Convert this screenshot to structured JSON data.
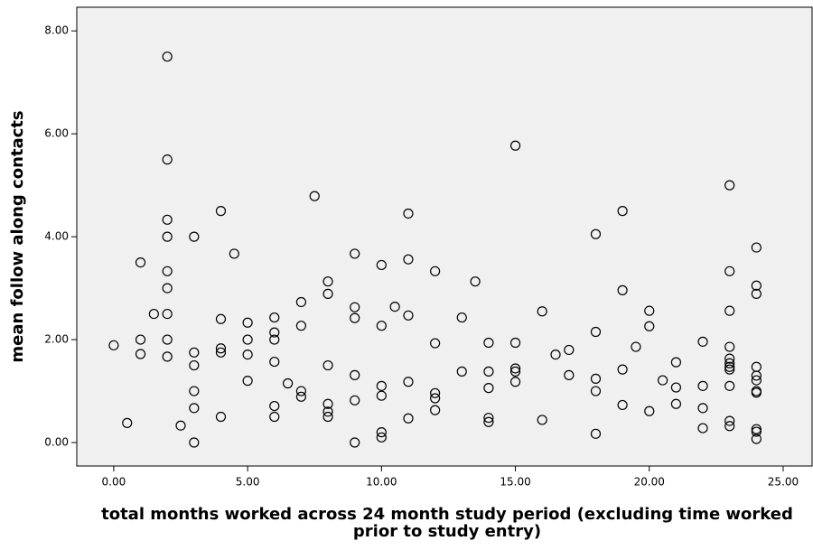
{
  "chart_data": {
    "type": "scatter",
    "x_label": "total months worked across 24 month study period (excluding time worked prior to study entry)",
    "y_label": "mean follow along contacts",
    "color": "#000000",
    "background": "#f0f0f0",
    "xlim": [
      -1.38,
      26.08
    ],
    "ylim": [
      -0.456,
      8.46
    ],
    "xticks": [
      {
        "value": 0,
        "label": "0.00"
      },
      {
        "value": 5,
        "label": "5.00"
      },
      {
        "value": 10,
        "label": "10.00"
      },
      {
        "value": 15,
        "label": "15.00"
      },
      {
        "value": 20,
        "label": "20.00"
      },
      {
        "value": 25,
        "label": "25.00"
      }
    ],
    "yticks": [
      {
        "value": 0,
        "label": "0.00"
      },
      {
        "value": 2,
        "label": "2.00"
      },
      {
        "value": 4,
        "label": "4.00"
      },
      {
        "value": 6,
        "label": "6.00"
      },
      {
        "value": 8,
        "label": "8.00"
      }
    ],
    "x": [
      0,
      0.5,
      1,
      1,
      1,
      1.5,
      2,
      2,
      2,
      2,
      2,
      2,
      2,
      2,
      2,
      2.5,
      3,
      3,
      3,
      3,
      3,
      3,
      4,
      4,
      4,
      4,
      4.5,
      4,
      5,
      5,
      5,
      5,
      6,
      6,
      6,
      6,
      6,
      6,
      6.5,
      7,
      7,
      7,
      7,
      7.5,
      8,
      8,
      8,
      8,
      8,
      8,
      9,
      9,
      9,
      9,
      9,
      9,
      10,
      10,
      10,
      10,
      10,
      10,
      10.5,
      11,
      11,
      11,
      11,
      11,
      12,
      12,
      12,
      12,
      12,
      13,
      13,
      13.5,
      14,
      14,
      14,
      14,
      14,
      15,
      15,
      15,
      15,
      15,
      16,
      16,
      16.5,
      17,
      17,
      18,
      18,
      18,
      18,
      18,
      19,
      19,
      19,
      19,
      19.5,
      20,
      20,
      20,
      20.5,
      21,
      21,
      21,
      22,
      22,
      22,
      22,
      23,
      23,
      23,
      23,
      23,
      23,
      23,
      23,
      23,
      23,
      23,
      24,
      24,
      24,
      24,
      24,
      24,
      24,
      24,
      24,
      24,
      24
    ],
    "values": [
      1.89,
      0.38,
      3.5,
      2.0,
      1.72,
      2.5,
      7.5,
      5.5,
      4.33,
      4.0,
      3.33,
      3.0,
      2.5,
      2.0,
      1.67,
      0.33,
      4.0,
      1.75,
      1.5,
      1.0,
      0.67,
      0,
      4.5,
      2.4,
      1.83,
      1.75,
      3.67,
      0.5,
      2.33,
      2.0,
      1.71,
      1.2,
      2.43,
      2.14,
      2.0,
      1.57,
      0.71,
      0.5,
      1.15,
      2.73,
      2.27,
      1.0,
      0.89,
      4.79,
      3.13,
      2.89,
      1.5,
      0.75,
      0.6,
      0.5,
      3.67,
      2.63,
      2.42,
      1.31,
      0.82,
      0,
      3.45,
      2.27,
      1.1,
      0.91,
      0.2,
      0.1,
      2.64,
      4.45,
      3.56,
      2.47,
      1.18,
      0.47,
      3.33,
      1.93,
      0.96,
      0.86,
      0.63,
      2.43,
      1.38,
      3.13,
      1.94,
      1.38,
      1.06,
      0.48,
      0.4,
      5.77,
      1.94,
      1.44,
      1.38,
      1.18,
      2.55,
      0.44,
      1.71,
      1.8,
      1.31,
      4.05,
      2.15,
      1.24,
      1.0,
      0.17,
      4.5,
      2.96,
      1.42,
      0.73,
      1.86,
      2.56,
      2.26,
      0.61,
      1.21,
      1.56,
      1.07,
      0.75,
      1.96,
      1.1,
      0.67,
      0.28,
      5.0,
      3.33,
      2.56,
      1.86,
      1.63,
      1.54,
      1.47,
      1.42,
      1.1,
      0.42,
      0.32,
      3.79,
      3.05,
      2.89,
      1.47,
      1.3,
      1.21,
      1.0,
      0.97,
      0.26,
      0.21,
      0.07
    ]
  }
}
